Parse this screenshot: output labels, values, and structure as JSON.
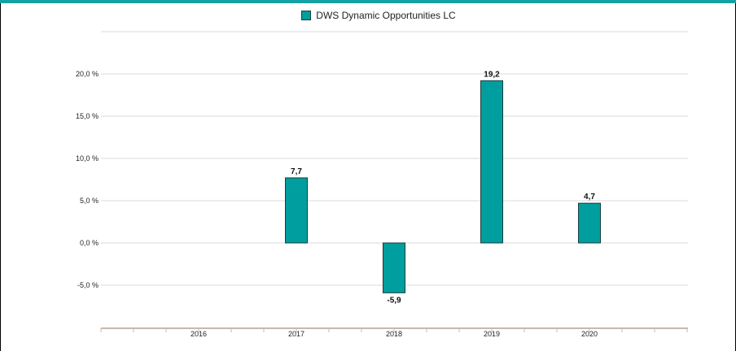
{
  "chart_data": {
    "type": "bar",
    "title": "",
    "xlabel": "",
    "ylabel": "",
    "categories": [
      "2016",
      "2017",
      "2018",
      "2019",
      "2020"
    ],
    "series": [
      {
        "name": "DWS Dynamic Opportunities  LC",
        "values": [
          null,
          7.7,
          -5.9,
          19.2,
          4.7
        ],
        "color": "#009e9e"
      }
    ],
    "data_labels": [
      "",
      "7,7",
      "-5,9",
      "19,2",
      "4,7"
    ],
    "y_ticks": [
      20,
      15,
      10,
      5,
      0,
      -5
    ],
    "y_tick_labels": [
      "20,0 %",
      "15,0 %",
      "10,0 %",
      "5,0 %",
      "0,0 %",
      "-5,0 %"
    ],
    "ylim": [
      -10,
      25
    ],
    "grid": true,
    "legend_position": "top"
  },
  "colors": {
    "accent_line": "#16a2a2",
    "bar_fill": "#009e9e",
    "bar_stroke": "#1a3c3c",
    "grid": "#d9d9d9",
    "axis": "#c8b8b0"
  }
}
